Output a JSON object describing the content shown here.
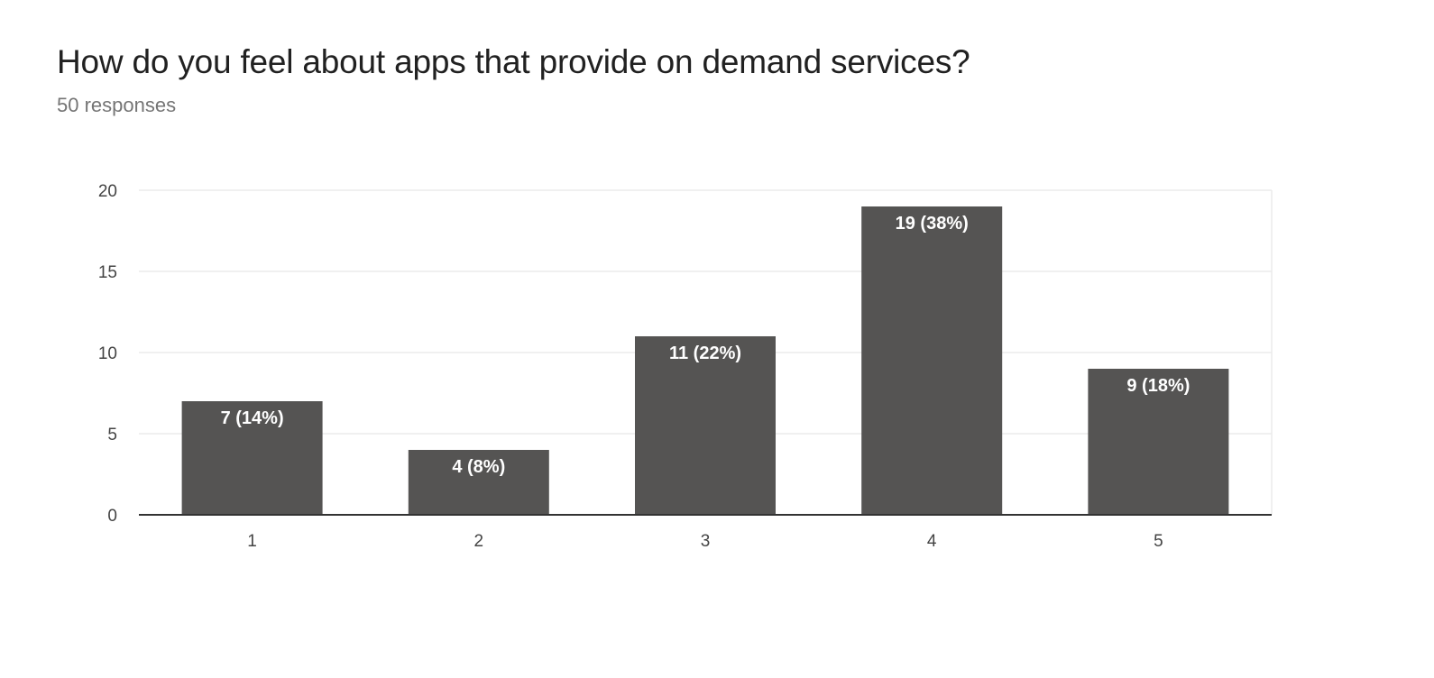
{
  "header": {
    "title": "How do you feel about apps that provide on demand services?",
    "subtitle": "50 responses"
  },
  "colors": {
    "bar": "#555453",
    "grid": "#ebebeb",
    "axis": "#333333"
  },
  "chart_data": {
    "type": "bar",
    "categories": [
      "1",
      "2",
      "3",
      "4",
      "5"
    ],
    "values": [
      7,
      4,
      11,
      19,
      9
    ],
    "data_labels": [
      "7 (14%)",
      "4 (8%)",
      "11 (22%)",
      "19 (38%)",
      "9 (18%)"
    ],
    "yticks": [
      0,
      5,
      10,
      15,
      20
    ],
    "ylim": [
      0,
      20
    ],
    "grid": true,
    "legend": "none"
  }
}
